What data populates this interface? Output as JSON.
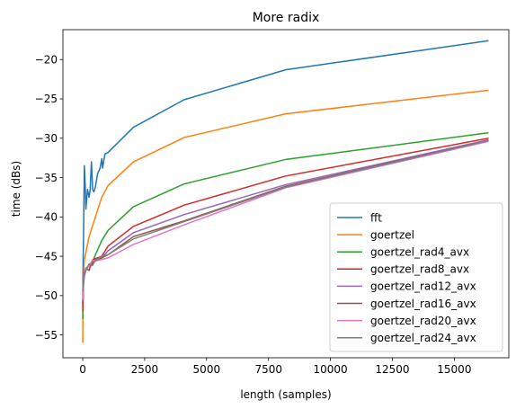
{
  "chart_data": {
    "type": "line",
    "title": "More radix",
    "xlabel": "length (samples)",
    "ylabel": "time (dBs)",
    "xlim": [
      -800,
      17200
    ],
    "ylim": [
      -57.9,
      -16.2
    ],
    "xticks": [
      0,
      2500,
      5000,
      7500,
      10000,
      12500,
      15000
    ],
    "yticks": [
      -55,
      -50,
      -45,
      -40,
      -35,
      -30,
      -25,
      -20
    ],
    "xtick_labels": [
      "0",
      "2500",
      "5000",
      "7500",
      "10000",
      "12500",
      "15000"
    ],
    "ytick_labels": [
      "−55",
      "−50",
      "−45",
      "−40",
      "−35",
      "−30",
      "−25",
      "−20"
    ],
    "grid": false,
    "legend_position": "lower right",
    "series": [
      {
        "name": "fft",
        "color": "#1f77b4",
        "points": [
          [
            1,
            -51.5
          ],
          [
            8,
            -48.0
          ],
          [
            16,
            -45.5
          ],
          [
            32,
            -42.5
          ],
          [
            50,
            -37.5
          ],
          [
            64,
            -33.5
          ],
          [
            100,
            -36.0
          ],
          [
            128,
            -39.0
          ],
          [
            192,
            -36.5
          ],
          [
            256,
            -37.5
          ],
          [
            300,
            -36.5
          ],
          [
            350,
            -33.0
          ],
          [
            400,
            -36.5
          ],
          [
            450,
            -36.8
          ],
          [
            512,
            -36.2
          ],
          [
            600,
            -34.5
          ],
          [
            700,
            -33.8
          ],
          [
            768,
            -32.6
          ],
          [
            800,
            -33.8
          ],
          [
            896,
            -32.0
          ],
          [
            1024,
            -31.8
          ],
          [
            2048,
            -28.6
          ],
          [
            4096,
            -25.1
          ],
          [
            8192,
            -21.3
          ],
          [
            16384,
            -17.6
          ]
        ]
      },
      {
        "name": "goertzel",
        "color": "#ff7f0e",
        "points": [
          [
            1,
            -56.0
          ],
          [
            8,
            -53.0
          ],
          [
            16,
            -50.0
          ],
          [
            32,
            -47.5
          ],
          [
            64,
            -45.5
          ],
          [
            128,
            -44.5
          ],
          [
            256,
            -42.5
          ],
          [
            512,
            -40.0
          ],
          [
            768,
            -37.5
          ],
          [
            1024,
            -36.0
          ],
          [
            2048,
            -33.0
          ],
          [
            4096,
            -29.9
          ],
          [
            8192,
            -26.9
          ],
          [
            16384,
            -23.9
          ]
        ]
      },
      {
        "name": "goertzel_rad4_avx",
        "color": "#2ca02c",
        "points": [
          [
            1,
            -53.0
          ],
          [
            16,
            -49.5
          ],
          [
            32,
            -48.5
          ],
          [
            64,
            -47.5
          ],
          [
            128,
            -46.8
          ],
          [
            256,
            -46.0
          ],
          [
            384,
            -45.8
          ],
          [
            512,
            -44.8
          ],
          [
            768,
            -43.0
          ],
          [
            1024,
            -41.7
          ],
          [
            2048,
            -38.7
          ],
          [
            4096,
            -35.8
          ],
          [
            8192,
            -32.7
          ],
          [
            16384,
            -29.3
          ]
        ]
      },
      {
        "name": "goertzel_rad8_avx",
        "color": "#d62728",
        "points": [
          [
            1,
            -52.0
          ],
          [
            16,
            -50.0
          ],
          [
            32,
            -48.5
          ],
          [
            64,
            -47.0
          ],
          [
            128,
            -46.5
          ],
          [
            256,
            -46.8
          ],
          [
            384,
            -45.5
          ],
          [
            512,
            -45.3
          ],
          [
            768,
            -45.0
          ],
          [
            1024,
            -43.7
          ],
          [
            2048,
            -41.2
          ],
          [
            4096,
            -38.5
          ],
          [
            8192,
            -34.8
          ],
          [
            16384,
            -30.0
          ]
        ]
      },
      {
        "name": "goertzel_rad12_avx",
        "color": "#9467bd",
        "points": [
          [
            1,
            -50.0
          ],
          [
            16,
            -49.0
          ],
          [
            32,
            -48.0
          ],
          [
            64,
            -47.5
          ],
          [
            128,
            -46.8
          ],
          [
            256,
            -46.0
          ],
          [
            384,
            -46.0
          ],
          [
            512,
            -45.5
          ],
          [
            768,
            -45.2
          ],
          [
            1024,
            -44.3
          ],
          [
            2048,
            -42.0
          ],
          [
            4096,
            -39.7
          ],
          [
            8192,
            -35.9
          ],
          [
            16384,
            -30.2
          ]
        ]
      },
      {
        "name": "goertzel_rad16_avx",
        "color": "#8c564b",
        "points": [
          [
            1,
            -51.0
          ],
          [
            16,
            -48.5
          ],
          [
            32,
            -47.5
          ],
          [
            64,
            -47.0
          ],
          [
            128,
            -46.5
          ],
          [
            256,
            -46.2
          ],
          [
            384,
            -46.0
          ],
          [
            512,
            -45.5
          ],
          [
            768,
            -45.2
          ],
          [
            1024,
            -44.8
          ],
          [
            2048,
            -42.5
          ],
          [
            4096,
            -40.5
          ],
          [
            8192,
            -36.1
          ],
          [
            16384,
            -30.3
          ]
        ]
      },
      {
        "name": "goertzel_rad20_avx",
        "color": "#e377c2",
        "points": [
          [
            1,
            -50.5
          ],
          [
            16,
            -49.0
          ],
          [
            32,
            -47.5
          ],
          [
            64,
            -47.0
          ],
          [
            128,
            -46.5
          ],
          [
            256,
            -46.3
          ],
          [
            384,
            -45.5
          ],
          [
            512,
            -45.6
          ],
          [
            768,
            -45.4
          ],
          [
            1024,
            -45.2
          ],
          [
            2048,
            -43.5
          ],
          [
            4096,
            -41.0
          ],
          [
            8192,
            -36.3
          ],
          [
            16384,
            -30.4
          ]
        ]
      },
      {
        "name": "goertzel_rad24_avx",
        "color": "#7f7f7f",
        "points": [
          [
            1,
            -49.5
          ],
          [
            16,
            -48.5
          ],
          [
            32,
            -47.5
          ],
          [
            64,
            -47.0
          ],
          [
            128,
            -46.8
          ],
          [
            256,
            -46.0
          ],
          [
            384,
            -46.2
          ],
          [
            512,
            -45.5
          ],
          [
            768,
            -45.0
          ],
          [
            1024,
            -44.8
          ],
          [
            2048,
            -42.8
          ],
          [
            4096,
            -40.6
          ],
          [
            8192,
            -36.2
          ],
          [
            16384,
            -30.3
          ]
        ]
      }
    ]
  }
}
